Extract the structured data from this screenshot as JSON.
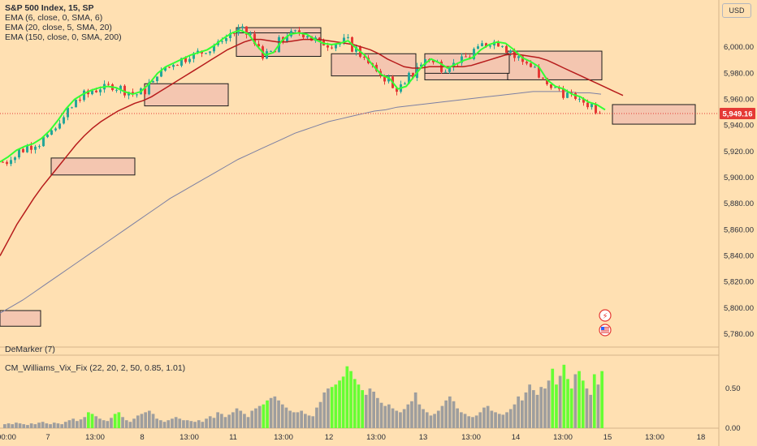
{
  "header": {
    "title": "S&P 500 Index, 15, SP",
    "indicators": [
      "EMA (6, close, 0, SMA, 6)",
      "EMA (20, close, 5, SMA, 20)",
      "EMA (150, close, 0, SMA, 200)"
    ],
    "currency": "USD"
  },
  "panes": {
    "demarker_label": "DeMarker (7)",
    "vixfix_label": "CM_Williams_Vix_Fix (22, 20, 2, 50, 0.85, 1.01)"
  },
  "colors": {
    "background": "#ffe0b2",
    "up_candle": "#26a69a",
    "down_candle": "#e53935",
    "ema_fast": "#33ff33",
    "ema_mid": "#b71c1c",
    "ema_slow": "#7b7fa3",
    "zone_fill": "#f4c6b0",
    "vix_gray": "#9e9e9e",
    "vix_green": "#66ff33"
  },
  "chart_data": {
    "type": "candlestick",
    "symbol": "S&P 500 Index",
    "interval": "15",
    "exchange": "SP",
    "last_price": "5,949.16",
    "ylim": [
      5770,
      6030
    ],
    "price_ticks": [
      "6,000.00",
      "5,980.00",
      "5,960.00",
      "5,940.00",
      "5,920.00",
      "5,900.00",
      "5,880.00",
      "5,860.00",
      "5,840.00",
      "5,820.00",
      "5,800.00",
      "5,780.00"
    ],
    "x_ticks": [
      "00:00",
      "7",
      "13:00",
      "8",
      "13:00",
      "11",
      "13:00",
      "12",
      "13:00",
      "13",
      "13:00",
      "14",
      "13:00",
      "15",
      "13:00",
      "18"
    ],
    "ema_fast_series": [
      5912,
      5916,
      5921,
      5924,
      5926,
      5930,
      5936,
      5944,
      5953,
      5960,
      5964,
      5967,
      5969,
      5970,
      5969,
      5966,
      5964,
      5966,
      5972,
      5980,
      5985,
      5988,
      5991,
      5994,
      5996,
      5998,
      6002,
      6007,
      6011,
      6013,
      6010,
      6001,
      5994,
      5996,
      6005,
      6010,
      6011,
      6010,
      6006,
      6003,
      6002,
      6003,
      6005,
      5999,
      5994,
      5986,
      5979,
      5976,
      5968,
      5970,
      5978,
      5986,
      5991,
      5988,
      5984,
      5987,
      5990,
      5992,
      5998,
      6002,
      6004,
      6003,
      5998,
      5992,
      5989,
      5985,
      5975,
      5970,
      5968,
      5964,
      5962,
      5958,
      5956,
      5952
    ],
    "ema_mid_series": [
      5840,
      5852,
      5864,
      5874,
      5884,
      5893,
      5901,
      5909,
      5917,
      5925,
      5932,
      5938,
      5943,
      5947,
      5951,
      5954,
      5957,
      5959,
      5962,
      5966,
      5970,
      5974,
      5978,
      5982,
      5986,
      5990,
      5994,
      5998,
      6001,
      6004,
      6006,
      6006,
      6005,
      6004,
      6004,
      6005,
      6006,
      6006,
      6006,
      6005,
      6004,
      6003,
      6002,
      6000,
      5998,
      5995,
      5991,
      5988,
      5985,
      5984,
      5984,
      5985,
      5985,
      5985,
      5985,
      5985,
      5986,
      5988,
      5990,
      5992,
      5994,
      5995,
      5994,
      5993,
      5992,
      5990,
      5987,
      5984,
      5981,
      5978,
      5975,
      5972,
      5969,
      5966,
      5963
    ],
    "ema_slow_series": [
      5796,
      5801,
      5806,
      5812,
      5818,
      5824,
      5830,
      5836,
      5842,
      5848,
      5854,
      5860,
      5866,
      5872,
      5878,
      5884,
      5889,
      5894,
      5899,
      5904,
      5909,
      5914,
      5918,
      5922,
      5926,
      5930,
      5934,
      5937,
      5940,
      5943,
      5945,
      5947,
      5949,
      5951,
      5952,
      5954,
      5955,
      5956,
      5957,
      5958,
      5959,
      5960,
      5961,
      5962,
      5963,
      5964,
      5965,
      5966,
      5966,
      5966,
      5966,
      5965,
      5965,
      5964
    ],
    "vix_fix": {
      "ylim": [
        0,
        0.9
      ],
      "ticks": [
        "0.50",
        "0.00"
      ],
      "values": [
        0.05,
        0.06,
        0.05,
        0.07,
        0.06,
        0.05,
        0.04,
        0.06,
        0.05,
        0.07,
        0.08,
        0.06,
        0.05,
        0.07,
        0.06,
        0.05,
        0.08,
        0.1,
        0.12,
        0.09,
        0.11,
        0.14,
        0.2,
        0.18,
        0.15,
        0.12,
        0.1,
        0.09,
        0.13,
        0.18,
        0.2,
        0.14,
        0.1,
        0.08,
        0.12,
        0.16,
        0.18,
        0.2,
        0.22,
        0.18,
        0.12,
        0.1,
        0.08,
        0.1,
        0.12,
        0.14,
        0.12,
        0.1,
        0.1,
        0.09,
        0.08,
        0.1,
        0.08,
        0.12,
        0.15,
        0.13,
        0.2,
        0.18,
        0.14,
        0.17,
        0.2,
        0.25,
        0.22,
        0.18,
        0.14,
        0.22,
        0.25,
        0.28,
        0.3,
        0.35,
        0.38,
        0.4,
        0.35,
        0.3,
        0.26,
        0.22,
        0.2,
        0.2,
        0.22,
        0.18,
        0.16,
        0.15,
        0.26,
        0.33,
        0.45,
        0.5,
        0.52,
        0.55,
        0.6,
        0.65,
        0.78,
        0.72,
        0.62,
        0.55,
        0.48,
        0.42,
        0.5,
        0.46,
        0.38,
        0.32,
        0.28,
        0.3,
        0.25,
        0.22,
        0.2,
        0.24,
        0.3,
        0.34,
        0.45,
        0.3,
        0.24,
        0.2,
        0.16,
        0.18,
        0.22,
        0.28,
        0.35,
        0.4,
        0.34,
        0.25,
        0.2,
        0.18,
        0.15,
        0.14,
        0.16,
        0.2,
        0.26,
        0.28,
        0.22,
        0.2,
        0.18,
        0.17,
        0.2,
        0.24,
        0.3,
        0.4,
        0.35,
        0.45,
        0.55,
        0.48,
        0.42,
        0.52,
        0.5,
        0.6,
        0.75,
        0.55,
        0.66,
        0.8,
        0.62,
        0.5,
        0.68,
        0.72,
        0.6,
        0.5,
        0.42,
        0.68,
        0.55,
        0.72
      ],
      "green_flags": [
        0,
        0,
        0,
        0,
        0,
        0,
        0,
        0,
        0,
        0,
        0,
        0,
        0,
        0,
        0,
        0,
        0,
        0,
        0,
        0,
        0,
        0,
        1,
        1,
        0,
        0,
        0,
        0,
        0,
        1,
        1,
        0,
        0,
        0,
        0,
        0,
        0,
        0,
        0,
        0,
        0,
        0,
        0,
        0,
        0,
        0,
        0,
        0,
        0,
        0,
        0,
        0,
        0,
        0,
        0,
        0,
        0,
        0,
        0,
        0,
        0,
        0,
        0,
        0,
        0,
        0,
        0,
        0,
        1,
        1,
        0,
        0,
        0,
        0,
        0,
        0,
        0,
        0,
        0,
        0,
        0,
        0,
        0,
        0,
        0,
        0,
        1,
        1,
        1,
        1,
        1,
        1,
        1,
        1,
        1,
        0,
        0,
        0,
        0,
        0,
        0,
        0,
        0,
        0,
        0,
        0,
        0,
        0,
        0,
        0,
        0,
        0,
        0,
        0,
        0,
        0,
        0,
        0,
        0,
        0,
        0,
        0,
        0,
        0,
        0,
        0,
        0,
        0,
        0,
        0,
        0,
        0,
        0,
        0,
        0,
        0,
        0,
        0,
        0,
        0,
        0,
        0,
        0,
        0,
        1,
        1,
        0,
        1,
        1,
        1,
        0,
        1,
        1,
        0,
        0,
        1,
        0,
        1
      ]
    },
    "zones": [
      {
        "p_top": 5798,
        "p_bot": 5786
      },
      {
        "p_top": 5915,
        "p_bot": 5902
      },
      {
        "p_top": 5972,
        "p_bot": 5955
      },
      {
        "p_top": 6015,
        "p_bot": 5993
      },
      {
        "p_top": 6011,
        "p_bot": 5993
      },
      {
        "p_top": 5995,
        "p_bot": 5978
      },
      {
        "p_top": 5990,
        "p_bot": 5975
      },
      {
        "p_top": 5997,
        "p_bot": 5975
      },
      {
        "p_top": 5995,
        "p_bot": 5980
      },
      {
        "p_top": 5956,
        "p_bot": 5941
      }
    ]
  }
}
